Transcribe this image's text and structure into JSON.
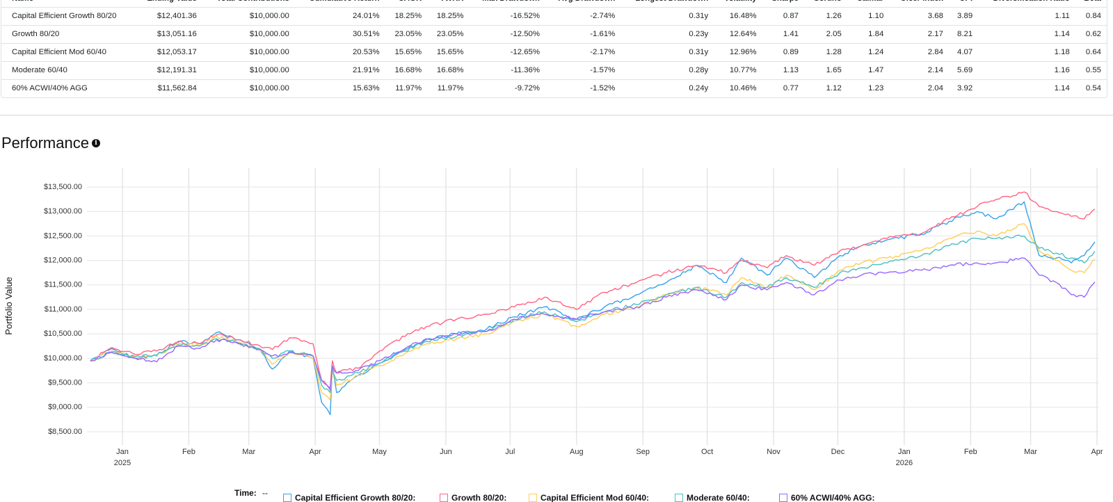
{
  "stats_table": {
    "columns": [
      "Name",
      "Ending Value",
      "Total Contributions",
      "Cumulative Return",
      "CAGR",
      "TWRR",
      "Max Drawdown",
      "Avg Drawdown",
      "Longest Drawdown",
      "Volatility",
      "Sharpe",
      "Sortino",
      "Calmar",
      "Ulcer Index",
      "UPI",
      "Diversification Ratio",
      "Beta"
    ],
    "rows": [
      [
        "Capital Efficient Growth 80/20",
        "$12,401.36",
        "$10,000.00",
        "24.01%",
        "18.25%",
        "18.25%",
        "-16.52%",
        "-2.74%",
        "0.31y",
        "16.48%",
        "0.87",
        "1.26",
        "1.10",
        "3.68",
        "3.89",
        "1.11",
        "0.84"
      ],
      [
        "Growth 80/20",
        "$13,051.16",
        "$10,000.00",
        "30.51%",
        "23.05%",
        "23.05%",
        "-12.50%",
        "-1.61%",
        "0.23y",
        "12.64%",
        "1.41",
        "2.05",
        "1.84",
        "2.17",
        "8.21",
        "1.14",
        "0.62"
      ],
      [
        "Capital Efficient Mod 60/40",
        "$12,053.17",
        "$10,000.00",
        "20.53%",
        "15.65%",
        "15.65%",
        "-12.65%",
        "-2.17%",
        "0.31y",
        "12.96%",
        "0.89",
        "1.28",
        "1.24",
        "2.84",
        "4.07",
        "1.18",
        "0.64"
      ],
      [
        "Moderate 60/40",
        "$12,191.31",
        "$10,000.00",
        "21.91%",
        "16.68%",
        "16.68%",
        "-11.36%",
        "-1.57%",
        "0.28y",
        "10.77%",
        "1.13",
        "1.65",
        "1.47",
        "2.14",
        "5.69",
        "1.16",
        "0.55"
      ],
      [
        "60% ACWI/40% AGG",
        "$11,562.84",
        "$10,000.00",
        "15.63%",
        "11.97%",
        "11.97%",
        "-9.72%",
        "-1.52%",
        "0.24y",
        "10.46%",
        "0.77",
        "1.12",
        "1.23",
        "2.04",
        "3.92",
        "1.14",
        "0.54"
      ]
    ]
  },
  "performance": {
    "heading": "Performance",
    "info_icon": "info-icon"
  },
  "legend": {
    "time_label": "Time:",
    "time_value": "--"
  },
  "chart_data": {
    "type": "line",
    "title": "",
    "xlabel": "",
    "ylabel": "Portfolio Value",
    "ylim": [
      8300,
      13800
    ],
    "y_ticks": [
      "$8,500.00",
      "$9,000.00",
      "$9,500.00",
      "$10,000.00",
      "$10,500.00",
      "$11,000.00",
      "$11,500.00",
      "$12,000.00",
      "$12,500.00",
      "$13,000.00",
      "$13,500.00"
    ],
    "y_tick_values": [
      8500,
      9000,
      9500,
      10000,
      10500,
      11000,
      11500,
      12000,
      12500,
      13000,
      13500
    ],
    "x_range": [
      "2024-12-17",
      "2026-03-31"
    ],
    "x_ticks": [
      {
        "label": "Jan",
        "date": "2025-01-01",
        "sub": "2025"
      },
      {
        "label": "Feb",
        "date": "2025-02-01",
        "sub": ""
      },
      {
        "label": "Mar",
        "date": "2025-03-01",
        "sub": ""
      },
      {
        "label": "Apr",
        "date": "2025-04-01",
        "sub": ""
      },
      {
        "label": "May",
        "date": "2025-05-01",
        "sub": ""
      },
      {
        "label": "Jun",
        "date": "2025-06-01",
        "sub": ""
      },
      {
        "label": "Jul",
        "date": "2025-07-01",
        "sub": ""
      },
      {
        "label": "Aug",
        "date": "2025-08-01",
        "sub": ""
      },
      {
        "label": "Sep",
        "date": "2025-09-01",
        "sub": ""
      },
      {
        "label": "Oct",
        "date": "2025-10-01",
        "sub": ""
      },
      {
        "label": "Nov",
        "date": "2025-11-01",
        "sub": ""
      },
      {
        "label": "Dec",
        "date": "2025-12-01",
        "sub": ""
      },
      {
        "label": "Jan",
        "date": "2026-01-01",
        "sub": "2026"
      },
      {
        "label": "Feb",
        "date": "2026-02-01",
        "sub": ""
      },
      {
        "label": "Mar",
        "date": "2026-03-01",
        "sub": ""
      },
      {
        "label": "Apr",
        "date": "2026-04-01",
        "sub": ""
      }
    ],
    "grid": true,
    "legend_position": "bottom",
    "series": [
      {
        "name": "Capital Efficient Growth 80/20:",
        "color": "#36a2eb",
        "dates": [
          "2024-12-17",
          "2024-12-27",
          "2025-01-07",
          "2025-01-17",
          "2025-01-27",
          "2025-02-06",
          "2025-02-14",
          "2025-02-24",
          "2025-03-06",
          "2025-03-12",
          "2025-03-20",
          "2025-03-31",
          "2025-04-04",
          "2025-04-08",
          "2025-04-09",
          "2025-04-11",
          "2025-04-21",
          "2025-05-01",
          "2025-05-13",
          "2025-05-23",
          "2025-06-06",
          "2025-06-20",
          "2025-07-03",
          "2025-07-17",
          "2025-08-01",
          "2025-08-14",
          "2025-08-29",
          "2025-09-12",
          "2025-09-26",
          "2025-10-10",
          "2025-10-17",
          "2025-10-29",
          "2025-11-07",
          "2025-11-20",
          "2025-12-02",
          "2025-12-12",
          "2025-12-24",
          "2026-01-09",
          "2026-01-22",
          "2026-02-04",
          "2026-02-13",
          "2026-02-26",
          "2026-03-05",
          "2026-03-13",
          "2026-03-20",
          "2026-03-26",
          "2026-03-31"
        ],
        "values": [
          9950,
          10200,
          10000,
          10050,
          10350,
          10300,
          10530,
          10380,
          10200,
          9780,
          10150,
          10000,
          9100,
          8850,
          9800,
          9300,
          9650,
          9900,
          10180,
          10390,
          10500,
          10600,
          10850,
          11050,
          10800,
          11050,
          11300,
          11550,
          11900,
          11550,
          12050,
          11700,
          12050,
          11650,
          12100,
          12300,
          12420,
          12530,
          12800,
          13000,
          12850,
          13200,
          12100,
          12050,
          11950,
          12100,
          12380
        ]
      },
      {
        "name": "Growth 80/20:",
        "color": "#ff6384",
        "dates": [
          "2024-12-17",
          "2024-12-27",
          "2025-01-07",
          "2025-01-17",
          "2025-01-27",
          "2025-02-06",
          "2025-02-14",
          "2025-02-24",
          "2025-03-06",
          "2025-03-12",
          "2025-03-20",
          "2025-03-31",
          "2025-04-04",
          "2025-04-08",
          "2025-04-09",
          "2025-04-11",
          "2025-04-21",
          "2025-05-01",
          "2025-05-13",
          "2025-05-23",
          "2025-06-06",
          "2025-06-20",
          "2025-07-03",
          "2025-07-17",
          "2025-08-01",
          "2025-08-14",
          "2025-08-29",
          "2025-09-12",
          "2025-09-26",
          "2025-10-10",
          "2025-10-17",
          "2025-10-29",
          "2025-11-07",
          "2025-11-20",
          "2025-12-02",
          "2025-12-12",
          "2025-12-24",
          "2026-01-09",
          "2026-01-22",
          "2026-02-04",
          "2026-02-13",
          "2026-02-26",
          "2026-03-05",
          "2026-03-13",
          "2026-03-20",
          "2026-03-26",
          "2026-03-31"
        ],
        "values": [
          9950,
          10220,
          10080,
          10150,
          10330,
          10300,
          10480,
          10380,
          10260,
          10180,
          10420,
          10300,
          9550,
          9400,
          9950,
          9700,
          9800,
          10150,
          10450,
          10650,
          10800,
          10900,
          11050,
          11250,
          11000,
          11350,
          11550,
          11750,
          11900,
          11750,
          12000,
          11850,
          12100,
          11900,
          12200,
          12300,
          12450,
          12550,
          12850,
          13100,
          13250,
          13400,
          13100,
          13000,
          12900,
          12850,
          13050
        ]
      },
      {
        "name": "Capital Efficient Mod 60/40:",
        "color": "#ffcd56",
        "dates": [
          "2024-12-17",
          "2024-12-27",
          "2025-01-07",
          "2025-01-17",
          "2025-01-27",
          "2025-02-06",
          "2025-02-14",
          "2025-02-24",
          "2025-03-06",
          "2025-03-12",
          "2025-03-20",
          "2025-03-31",
          "2025-04-04",
          "2025-04-08",
          "2025-04-09",
          "2025-04-11",
          "2025-04-21",
          "2025-05-01",
          "2025-05-13",
          "2025-05-23",
          "2025-06-06",
          "2025-06-20",
          "2025-07-03",
          "2025-07-17",
          "2025-08-01",
          "2025-08-14",
          "2025-08-29",
          "2025-09-12",
          "2025-09-26",
          "2025-10-10",
          "2025-10-17",
          "2025-10-29",
          "2025-11-07",
          "2025-11-20",
          "2025-12-02",
          "2025-12-12",
          "2025-12-24",
          "2026-01-09",
          "2026-01-22",
          "2026-02-04",
          "2026-02-13",
          "2026-02-26",
          "2026-03-05",
          "2026-03-13",
          "2026-03-20",
          "2026-03-26",
          "2026-03-31"
        ],
        "values": [
          9950,
          10150,
          10020,
          10060,
          10300,
          10260,
          10450,
          10330,
          10180,
          9880,
          10120,
          10000,
          9300,
          9150,
          9750,
          9450,
          9650,
          9850,
          10100,
          10300,
          10400,
          10500,
          10750,
          10900,
          10650,
          10900,
          11050,
          11300,
          11450,
          11300,
          11650,
          11450,
          11700,
          11400,
          11800,
          11950,
          12050,
          12200,
          12450,
          12600,
          12500,
          12750,
          12200,
          12000,
          11800,
          11750,
          12030
        ]
      },
      {
        "name": "Moderate 60/40:",
        "color": "#4bc0c0",
        "dates": [
          "2024-12-17",
          "2024-12-27",
          "2025-01-07",
          "2025-01-17",
          "2025-01-27",
          "2025-02-06",
          "2025-02-14",
          "2025-02-24",
          "2025-03-06",
          "2025-03-12",
          "2025-03-20",
          "2025-03-31",
          "2025-04-04",
          "2025-04-08",
          "2025-04-09",
          "2025-04-11",
          "2025-04-21",
          "2025-05-01",
          "2025-05-13",
          "2025-05-23",
          "2025-06-06",
          "2025-06-20",
          "2025-07-03",
          "2025-07-17",
          "2025-08-01",
          "2025-08-14",
          "2025-08-29",
          "2025-09-12",
          "2025-09-26",
          "2025-10-10",
          "2025-10-17",
          "2025-10-29",
          "2025-11-07",
          "2025-11-20",
          "2025-12-02",
          "2025-12-12",
          "2025-12-24",
          "2026-01-09",
          "2026-01-22",
          "2026-02-04",
          "2026-02-13",
          "2026-02-26",
          "2026-03-05",
          "2026-03-13",
          "2026-03-20",
          "2026-03-26",
          "2026-03-31"
        ],
        "values": [
          9950,
          10130,
          10040,
          10070,
          10280,
          10250,
          10400,
          10320,
          10200,
          10000,
          10150,
          10050,
          9450,
          9300,
          9800,
          9550,
          9700,
          9900,
          10150,
          10350,
          10450,
          10550,
          10800,
          10950,
          10750,
          10950,
          11100,
          11300,
          11450,
          11250,
          11550,
          11450,
          11650,
          11450,
          11750,
          11850,
          11950,
          12100,
          12300,
          12450,
          12450,
          12500,
          12250,
          12150,
          12050,
          11950,
          12190
        ]
      },
      {
        "name": "60% ACWI/40% AGG:",
        "color": "#9966ff",
        "dates": [
          "2024-12-17",
          "2024-12-27",
          "2025-01-07",
          "2025-01-17",
          "2025-01-27",
          "2025-02-06",
          "2025-02-14",
          "2025-02-24",
          "2025-03-06",
          "2025-03-12",
          "2025-03-20",
          "2025-03-31",
          "2025-04-04",
          "2025-04-08",
          "2025-04-09",
          "2025-04-11",
          "2025-04-21",
          "2025-05-01",
          "2025-05-13",
          "2025-05-23",
          "2025-06-06",
          "2025-06-20",
          "2025-07-03",
          "2025-07-17",
          "2025-08-01",
          "2025-08-14",
          "2025-08-29",
          "2025-09-12",
          "2025-09-26",
          "2025-10-10",
          "2025-10-17",
          "2025-10-29",
          "2025-11-07",
          "2025-11-20",
          "2025-12-02",
          "2025-12-12",
          "2025-12-24",
          "2026-01-09",
          "2026-01-22",
          "2026-02-04",
          "2026-02-13",
          "2026-02-26",
          "2026-03-05",
          "2026-03-13",
          "2026-03-20",
          "2026-03-26",
          "2026-03-31"
        ],
        "values": [
          9950,
          10120,
          10000,
          9930,
          10250,
          10200,
          10380,
          10300,
          10180,
          10050,
          10120,
          10050,
          9550,
          9350,
          9850,
          9700,
          9750,
          9950,
          10200,
          10400,
          10500,
          10550,
          10800,
          10900,
          10800,
          10950,
          11050,
          11250,
          11400,
          11200,
          11500,
          11400,
          11550,
          11300,
          11600,
          11700,
          11750,
          11800,
          11900,
          11950,
          11950,
          12050,
          11700,
          11550,
          11300,
          11250,
          11560
        ]
      }
    ]
  }
}
